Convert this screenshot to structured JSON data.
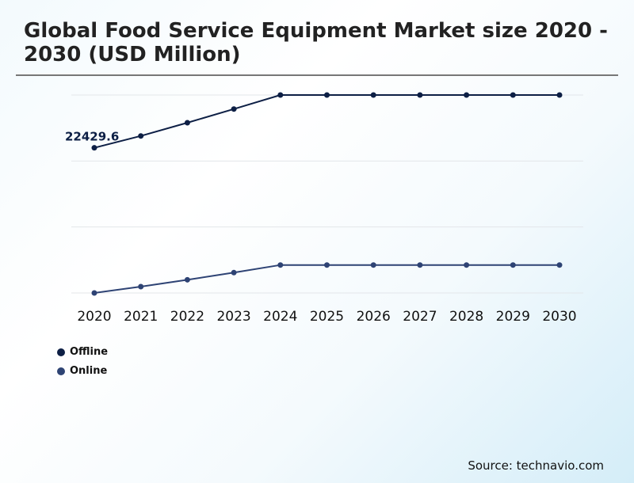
{
  "chart_data": {
    "type": "line",
    "title": "Global Food Service Equipment Market size 2020 - 2030 (USD Million)",
    "categories": [
      "2020",
      "2021",
      "2022",
      "2023",
      "2024",
      "2025",
      "2026",
      "2027",
      "2028",
      "2029",
      "2030"
    ],
    "series": [
      {
        "name": "Offline",
        "color": "#0d1f45",
        "values": [
          22429.6,
          23328,
          24330,
          25368,
          26430,
          26430,
          26430,
          26430,
          26430,
          26430,
          26430
        ]
      },
      {
        "name": "Online",
        "color": "#2e4374",
        "values": [
          11430,
          11910,
          12430,
          12972,
          13548,
          13548,
          13548,
          13548,
          13548,
          13548,
          13548
        ]
      }
    ],
    "data_labels": [
      {
        "series": "Offline",
        "category": "2020",
        "text": "22429.6"
      }
    ],
    "ylim": [
      11430,
      26430
    ],
    "y_gridlines": [
      11430,
      16430,
      21430,
      26430
    ],
    "grid": true,
    "y_axis_labels_shown": false,
    "legend_position": "bottom-left"
  },
  "source": "Source: technavio.com"
}
